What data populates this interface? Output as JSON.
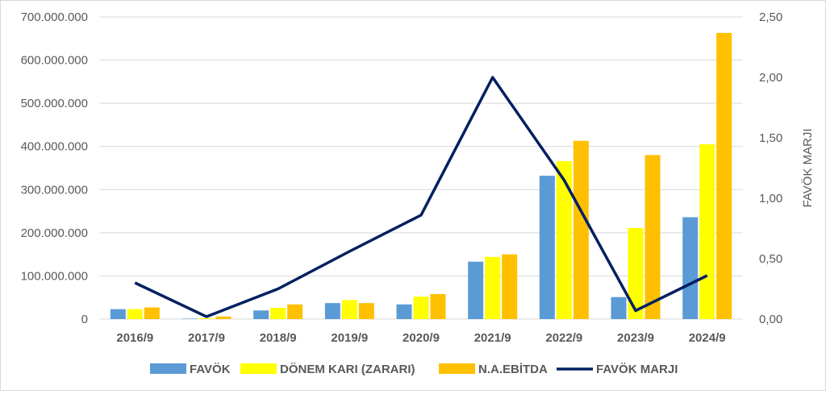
{
  "chart_data": {
    "type": "bar",
    "categories": [
      "2016/9",
      "2017/9",
      "2018/9",
      "2019/9",
      "2020/9",
      "2021/9",
      "2022/9",
      "2023/9",
      "2024/9"
    ],
    "series": [
      {
        "name": "FAVÖK",
        "type": "bar",
        "axis": "left",
        "color": "#5B9BD5",
        "values": [
          23000000,
          1000000,
          20000000,
          37000000,
          34000000,
          133000000,
          332000000,
          51000000,
          236000000
        ]
      },
      {
        "name": "DÖNEM KARI (ZARARI)",
        "type": "bar",
        "axis": "left",
        "color": "#FFFF00",
        "values": [
          23000000,
          2000000,
          26000000,
          44000000,
          52000000,
          144000000,
          366000000,
          211000000,
          405000000
        ]
      },
      {
        "name": "N.A.EBİTDA",
        "type": "bar",
        "axis": "left",
        "color": "#FFC000",
        "values": [
          27000000,
          6000000,
          34000000,
          37000000,
          58000000,
          150000000,
          413000000,
          380000000,
          663000000
        ]
      },
      {
        "name": "FAVÖK MARJI",
        "type": "line",
        "axis": "right",
        "color": "#002060",
        "values": [
          0.3,
          0.02,
          0.25,
          0.56,
          0.86,
          2.0,
          1.15,
          0.07,
          0.36
        ]
      }
    ],
    "y_left": {
      "min": 0,
      "max": 700000000,
      "ticks": [
        0,
        100000000,
        200000000,
        300000000,
        400000000,
        500000000,
        600000000,
        700000000
      ],
      "tick_labels": [
        "0",
        "100.000.000",
        "200.000.000",
        "300.000.000",
        "400.000.000",
        "500.000.000",
        "600.000.000",
        "700.000.000"
      ]
    },
    "y_right": {
      "min": 0,
      "max": 2.5,
      "ticks": [
        0,
        0.5,
        1.0,
        1.5,
        2.0,
        2.5
      ],
      "tick_labels": [
        "0,00",
        "0,50",
        "1,00",
        "1,50",
        "2,00",
        "2,50"
      ],
      "label": "FAVÖK MARJI"
    },
    "grid": "horizontal",
    "legend_position": "bottom"
  }
}
